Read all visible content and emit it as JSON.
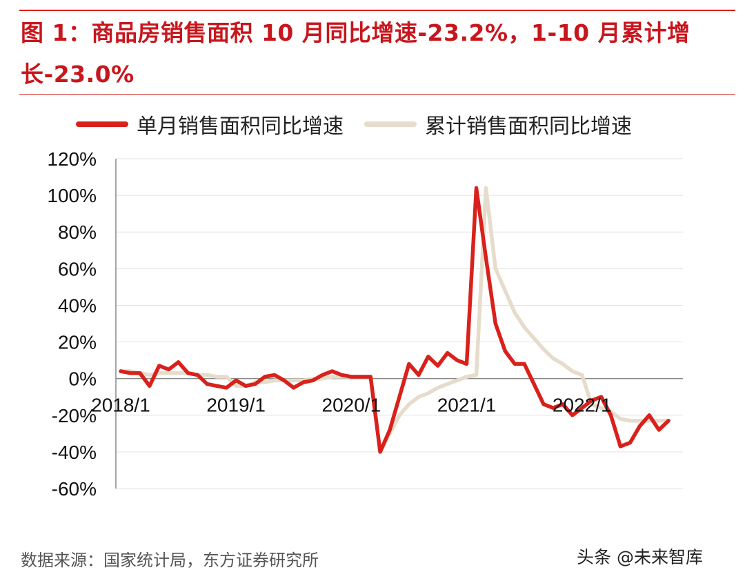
{
  "title": "图 1：商品房销售面积 10 月同比增速-23.2%，1-10 月累计增长-23.0%",
  "source": "数据来源：国家统计局，东方证券研究所",
  "watermark": "头条 @未来智库",
  "colors": {
    "accent": "#c8161d",
    "monthly": "#d9211c",
    "cumulative": "#e6dccb"
  },
  "chart_data": {
    "type": "line",
    "title": "",
    "xlabel": "",
    "ylabel": "",
    "ylim": [
      -60,
      120
    ],
    "yticks": [
      "120%",
      "100%",
      "80%",
      "60%",
      "40%",
      "20%",
      "0%",
      "-20%",
      "-40%",
      "-60%"
    ],
    "x_tick_labels": [
      "2018/1",
      "2019/1",
      "2020/1",
      "2021/1",
      "2022/1"
    ],
    "grid": "horizontal",
    "legend": "top",
    "x": [
      "2018/1",
      "2018/2",
      "2018/3",
      "2018/4",
      "2018/5",
      "2018/6",
      "2018/7",
      "2018/8",
      "2018/9",
      "2018/10",
      "2018/11",
      "2018/12",
      "2019/1",
      "2019/2",
      "2019/3",
      "2019/4",
      "2019/5",
      "2019/6",
      "2019/7",
      "2019/8",
      "2019/9",
      "2019/10",
      "2019/11",
      "2019/12",
      "2020/1",
      "2020/2",
      "2020/3",
      "2020/4",
      "2020/5",
      "2020/6",
      "2020/7",
      "2020/8",
      "2020/9",
      "2020/10",
      "2020/11",
      "2020/12",
      "2021/1",
      "2021/2",
      "2021/3",
      "2021/4",
      "2021/5",
      "2021/6",
      "2021/7",
      "2021/8",
      "2021/9",
      "2021/10",
      "2021/11",
      "2021/12",
      "2022/1",
      "2022/2",
      "2022/3",
      "2022/4",
      "2022/5",
      "2022/6",
      "2022/7",
      "2022/8",
      "2022/9",
      "2022/10"
    ],
    "series": [
      {
        "name": "单月销售面积同比增速",
        "values": [
          4,
          3,
          3,
          -4,
          7,
          5,
          9,
          3,
          2,
          -3,
          -4,
          -5,
          -1,
          -4,
          -3,
          1,
          2,
          -1,
          -5,
          -2,
          -1,
          2,
          4,
          2,
          1,
          1,
          1,
          -40,
          -28,
          -10,
          8,
          2,
          12,
          7,
          14,
          10,
          8,
          104,
          66,
          30,
          15,
          8,
          8,
          -3,
          -14,
          -16,
          -14,
          -20,
          -16,
          -12,
          -10,
          -20,
          -37,
          -35,
          -26,
          -20,
          -28,
          -23
        ]
      },
      {
        "name": "累计销售面积同比增速",
        "values": [
          4,
          4,
          3,
          2,
          3,
          3,
          3,
          3,
          2,
          2,
          1,
          1,
          -4,
          -4,
          -2,
          -2,
          -1,
          -1,
          -1,
          -1,
          0,
          0,
          1,
          1,
          1,
          1,
          1,
          -40,
          -30,
          -20,
          -14,
          -10,
          -8,
          -5,
          -3,
          -1,
          1,
          2,
          104,
          60,
          48,
          36,
          28,
          22,
          16,
          11,
          8,
          4,
          2,
          -14,
          -16,
          -18,
          -22,
          -23,
          -23,
          -23,
          -23,
          -23
        ]
      }
    ]
  }
}
